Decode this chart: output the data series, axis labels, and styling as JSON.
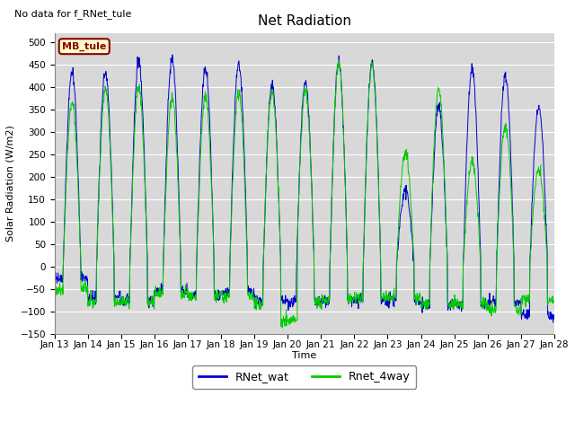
{
  "title": "Net Radiation",
  "top_left_text": "No data for f_RNet_tule",
  "ylabel": "Solar Radiation (W/m2)",
  "xlabel": "Time",
  "ylim": [
    -150,
    520
  ],
  "yticks": [
    -150,
    -100,
    -50,
    0,
    50,
    100,
    150,
    200,
    250,
    300,
    350,
    400,
    450,
    500
  ],
  "legend_box_label": "MB_tule",
  "legend_box_color": "#ffffcc",
  "legend_box_border": "#8b0000",
  "line1_label": "RNet_wat",
  "line1_color": "#0000cc",
  "line2_label": "Rnet_4way",
  "line2_color": "#00cc00",
  "bg_color": "#d8d8d8",
  "fig_bg_color": "#ffffff",
  "title_fontsize": 11,
  "label_fontsize": 8,
  "tick_fontsize": 7.5
}
